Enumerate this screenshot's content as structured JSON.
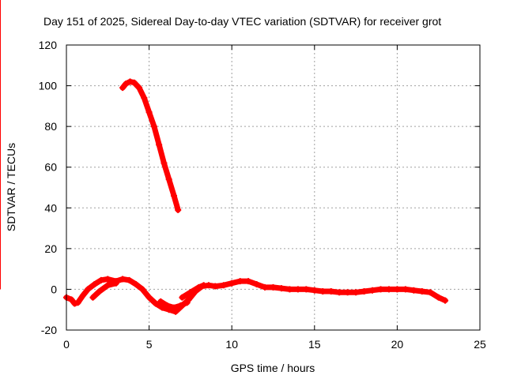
{
  "chart_data": {
    "type": "line",
    "title": "Day 151 of 2025, Sidereal Day-to-day VTEC variation (SDTVAR) for receiver grot",
    "xlabel": "GPS time / hours",
    "ylabel": "SDTVAR / TECUs",
    "xlim": [
      0,
      25
    ],
    "ylim": [
      -20,
      120
    ],
    "xticks": [
      0,
      5,
      10,
      15,
      20,
      25
    ],
    "yticks": [
      -20,
      0,
      20,
      40,
      60,
      80,
      100,
      120
    ],
    "grid": true,
    "series_color": "#ff0000",
    "series": [
      {
        "points": [
          [
            3.4,
            99
          ],
          [
            3.6,
            101
          ],
          [
            3.85,
            102
          ],
          [
            4.1,
            101.5
          ],
          [
            4.4,
            99
          ],
          [
            4.7,
            94
          ],
          [
            5.0,
            87
          ],
          [
            5.3,
            80
          ],
          [
            5.6,
            71
          ],
          [
            5.9,
            62
          ],
          [
            6.2,
            54
          ],
          [
            6.5,
            46
          ],
          [
            6.75,
            39
          ]
        ]
      },
      {
        "points": [
          [
            0.0,
            -4
          ],
          [
            0.3,
            -5
          ],
          [
            0.5,
            -7
          ],
          [
            0.7,
            -6.5
          ],
          [
            1.0,
            -3
          ],
          [
            1.3,
            0
          ],
          [
            1.7,
            2.5
          ],
          [
            2.1,
            4.5
          ],
          [
            2.5,
            5
          ],
          [
            3.0,
            4
          ],
          [
            3.4,
            5
          ],
          [
            3.8,
            4.5
          ],
          [
            4.2,
            2.5
          ],
          [
            4.6,
            0
          ],
          [
            5.0,
            -4
          ],
          [
            5.4,
            -7
          ],
          [
            5.8,
            -9
          ],
          [
            6.2,
            -10
          ],
          [
            6.6,
            -11
          ],
          [
            7.0,
            -8
          ],
          [
            7.4,
            -5
          ],
          [
            7.8,
            -1
          ],
          [
            8.2,
            1.5
          ],
          [
            8.6,
            2
          ],
          [
            9.0,
            1.5
          ],
          [
            9.5,
            2
          ],
          [
            10.0,
            3
          ],
          [
            10.5,
            4
          ],
          [
            11.0,
            4
          ],
          [
            11.5,
            2.5
          ],
          [
            12.0,
            1
          ],
          [
            12.5,
            1
          ],
          [
            13.0,
            0.5
          ],
          [
            13.5,
            0
          ],
          [
            14.0,
            0
          ],
          [
            14.5,
            0
          ],
          [
            15.0,
            -0.5
          ],
          [
            15.5,
            -1
          ],
          [
            16.0,
            -1
          ],
          [
            16.5,
            -1.5
          ],
          [
            17.0,
            -1.5
          ],
          [
            17.5,
            -1.5
          ],
          [
            18.0,
            -1
          ],
          [
            18.5,
            -0.5
          ],
          [
            19.0,
            0
          ],
          [
            19.5,
            0
          ],
          [
            20.0,
            0
          ],
          [
            20.5,
            0
          ],
          [
            21.0,
            -0.5
          ],
          [
            21.5,
            -1
          ],
          [
            22.0,
            -1.5
          ],
          [
            22.5,
            -4
          ],
          [
            22.9,
            -5.5
          ]
        ]
      },
      {
        "points": [
          [
            1.6,
            -4
          ],
          [
            2.0,
            -1
          ],
          [
            2.5,
            2
          ],
          [
            3.0,
            3
          ]
        ]
      },
      {
        "points": [
          [
            5.7,
            -6
          ],
          [
            6.1,
            -8
          ],
          [
            6.5,
            -9
          ],
          [
            6.9,
            -8
          ],
          [
            7.3,
            -6.5
          ]
        ]
      },
      {
        "points": [
          [
            7.0,
            -4
          ],
          [
            7.5,
            -1.5
          ],
          [
            8.0,
            1
          ],
          [
            8.3,
            2
          ]
        ]
      }
    ],
    "spikes": [
      {
        "x": 10.8,
        "y": 6
      },
      {
        "x": 14.3,
        "y": 4
      },
      {
        "x": 15.8,
        "y": 4
      }
    ]
  }
}
